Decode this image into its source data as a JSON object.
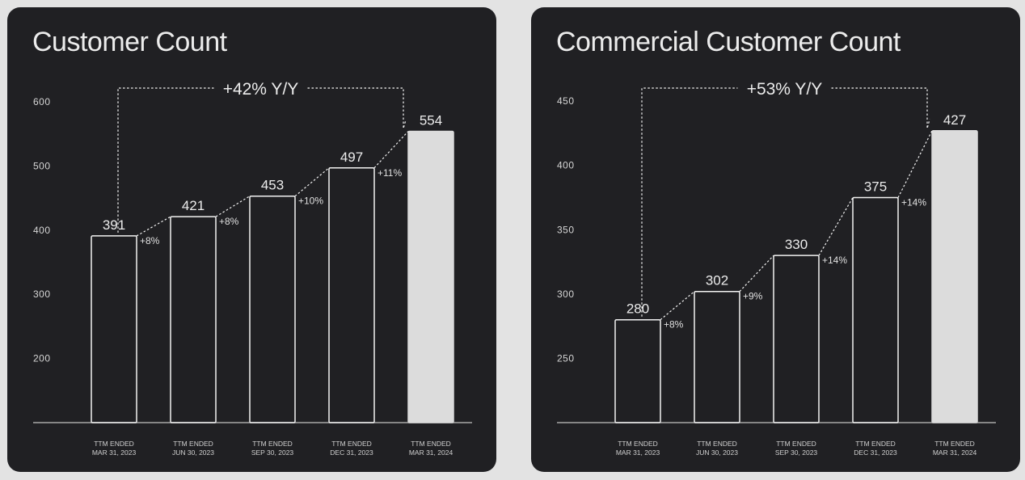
{
  "panels": [
    {
      "title": "Customer Count"
    },
    {
      "title": "Commercial Customer Count"
    }
  ],
  "colors": {
    "panel_background": "#202023",
    "page_background": "#e3e3e3",
    "text": "#ececec",
    "bar_outline": "#f2f2f2",
    "highlight_bar": "#dcdcdc"
  },
  "chart_data": [
    {
      "type": "bar",
      "title": "Customer Count",
      "categories": [
        [
          "TTM ENDED",
          "MAR 31, 2023"
        ],
        [
          "TTM ENDED",
          "JUN 30, 2023"
        ],
        [
          "TTM ENDED",
          "SEP 30, 2023"
        ],
        [
          "TTM ENDED",
          "DEC 31, 2023"
        ],
        [
          "TTM ENDED",
          "MAR 31, 2024"
        ]
      ],
      "values": [
        391,
        421,
        453,
        497,
        554
      ],
      "value_labels": [
        "391",
        "421",
        "453",
        "497",
        "554"
      ],
      "growth_labels": [
        "+8%",
        "+8%",
        "+10%",
        "+11%"
      ],
      "yoy_label": "+42% Y/Y",
      "yticks": [
        200,
        300,
        400,
        500,
        600
      ],
      "ytick_labels": [
        "200",
        "300",
        "400",
        "500",
        "600"
      ],
      "ylim": [
        100,
        605
      ],
      "highlight_index": 4,
      "grid": false,
      "legend": "none",
      "xlabel": "",
      "ylabel": ""
    },
    {
      "type": "bar",
      "title": "Commercial Customer Count",
      "categories": [
        [
          "TTM ENDED",
          "MAR 31, 2023"
        ],
        [
          "TTM ENDED",
          "JUN 30, 2023"
        ],
        [
          "TTM ENDED",
          "SEP 30, 2023"
        ],
        [
          "TTM ENDED",
          "DEC 31, 2023"
        ],
        [
          "TTM ENDED",
          "MAR 31, 2024"
        ]
      ],
      "values": [
        280,
        302,
        330,
        375,
        427
      ],
      "value_labels": [
        "280",
        "302",
        "330",
        "375",
        "427"
      ],
      "growth_labels": [
        "+8%",
        "+9%",
        "+14%",
        "+14%"
      ],
      "yoy_label": "+53% Y/Y",
      "yticks": [
        250,
        300,
        350,
        400,
        450
      ],
      "ytick_labels": [
        "250",
        "300",
        "350",
        "400",
        "450"
      ],
      "ylim": [
        200,
        452
      ],
      "highlight_index": 4,
      "grid": false,
      "legend": "none",
      "xlabel": "",
      "ylabel": ""
    }
  ]
}
